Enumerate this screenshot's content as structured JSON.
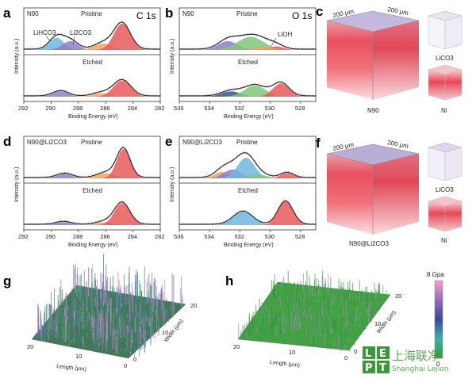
{
  "panel_labels": [
    "a",
    "b",
    "c",
    "d",
    "e",
    "f",
    "g",
    "h"
  ],
  "colors": {
    "blue": "#6fb6e0",
    "purple": "#8e7ec4",
    "orange": "#f0a35f",
    "green": "#7fc77a",
    "red": "#e85a5a",
    "navy": "#3b4f8c",
    "fit": "#222222",
    "sample_blue": "#1f3a8a",
    "sample_gold": "#b8a000"
  },
  "xps": {
    "a": {
      "sample": "N90",
      "condition_top": "Pristine",
      "condition_bottom": "Etched",
      "element": "C 1s",
      "peaks": [
        "LiHCO3",
        "Li2CO3"
      ],
      "xlabel": "Binding Energy (eV)",
      "ylabel": "Intensity (a.u.)",
      "ticks": [
        "292",
        "290",
        "288",
        "286",
        "284",
        "282"
      ]
    },
    "b": {
      "sample": "N90",
      "condition_top": "Pristine",
      "condition_bottom": "Etched",
      "element": "O 1s",
      "peaks": [
        "LiOH"
      ],
      "xlabel": "Binding Energy (eV)",
      "ylabel": "Intensity (a.u.)",
      "ticks": [
        "536",
        "534",
        "532",
        "530",
        "528"
      ]
    },
    "d": {
      "sample": "N90@Li2CO3",
      "condition_top": "Pristine",
      "condition_bottom": "Etched",
      "xlabel": "Binding Energy (eV)",
      "ylabel": "Intensity (a.u.)",
      "ticks": [
        "292",
        "290",
        "288",
        "286",
        "284",
        "282"
      ]
    },
    "e": {
      "sample": "N90@Li2CO3",
      "condition_top": "Pristine",
      "condition_bottom": "Etched",
      "xlabel": "Binding Energy (eV)",
      "ylabel": "Intensity (a.u.)",
      "ticks": [
        "536",
        "534",
        "532",
        "530",
        "528"
      ]
    }
  },
  "tof_sims": {
    "c": {
      "dims": [
        "200 μm",
        "200 μm"
      ],
      "sample": "N90",
      "species": [
        "LiCO3",
        "Ni"
      ]
    },
    "f": {
      "dims": [
        "200 μm",
        "200 μm"
      ],
      "sample": "N90@Li2CO3",
      "species": [
        "LiCO3",
        "Ni"
      ]
    }
  },
  "afm": {
    "g": {
      "xlabel": "Length (μm)",
      "ylabel": "Width (μm)",
      "length_ticks": [
        "20",
        "10",
        "0"
      ],
      "width_ticks": [
        "0",
        "10",
        "20"
      ]
    },
    "h": {
      "xlabel": "Length (μm)",
      "ylabel": "Width (μm)",
      "length_ticks": [
        "20",
        "10",
        "0"
      ],
      "width_ticks": [
        "0",
        "10",
        "20"
      ],
      "colorbar_max": "8 Gpa",
      "colorbar_min": "0"
    }
  },
  "watermark": {
    "line1": "上海联净",
    "line2": "Shanghai Lejion",
    "letters": [
      "L",
      "E",
      "P",
      "T"
    ]
  },
  "chart_data": [
    {
      "type": "line",
      "panel": "a",
      "xlabel": "Binding Energy (eV)",
      "ylabel": "Intensity (a.u.)",
      "xlim": [
        292,
        282
      ],
      "series": [
        {
          "name": "LiHCO3",
          "center": 289.6,
          "values": [
            0.55
          ]
        },
        {
          "name": "Li2CO3",
          "center": 288.5,
          "values": [
            0.45
          ]
        }
      ]
    },
    {
      "type": "line",
      "panel": "b",
      "xlabel": "Binding Energy (eV)",
      "ylabel": "Intensity (a.u.)",
      "xlim": [
        536,
        527
      ],
      "series": [
        {
          "name": "LiOH",
          "center": 530.4,
          "values": [
            0.35
          ]
        }
      ]
    },
    {
      "type": "line",
      "panel": "d",
      "xlabel": "Binding Energy (eV)",
      "ylabel": "Intensity (a.u.)",
      "xlim": [
        292,
        282
      ]
    },
    {
      "type": "line",
      "panel": "e",
      "xlabel": "Binding Energy (eV)",
      "ylabel": "Intensity (a.u.)",
      "xlim": [
        536,
        527
      ]
    }
  ]
}
